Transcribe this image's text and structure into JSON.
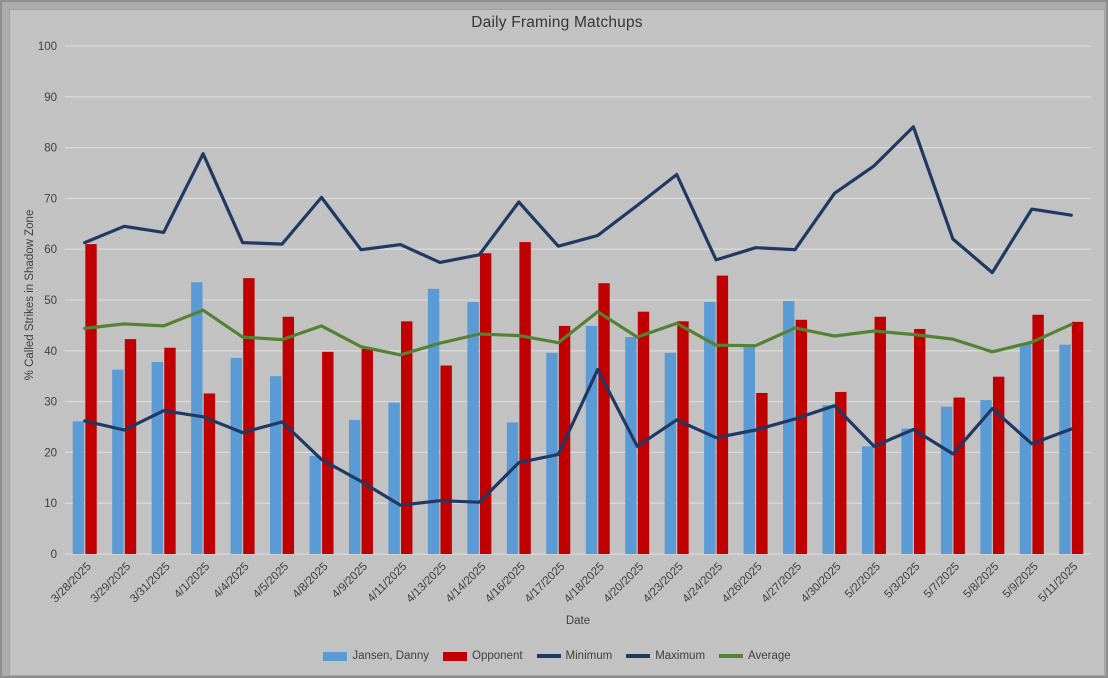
{
  "chart_data": {
    "type": "combo",
    "title": "Daily Framing Matchups",
    "xlabel": "Date",
    "ylabel": "% Called Strikes in Shadow Zone",
    "ylim": [
      0,
      100
    ],
    "yticks": [
      0,
      10,
      20,
      30,
      40,
      50,
      60,
      70,
      80,
      90,
      100
    ],
    "grid": "horizontal",
    "legend_position": "bottom",
    "categories": [
      "3/28/2025",
      "3/29/2025",
      "3/31/2025",
      "4/1/2025",
      "4/4/2025",
      "4/5/2025",
      "4/8/2025",
      "4/9/2025",
      "4/11/2025",
      "4/13/2025",
      "4/14/2025",
      "4/16/2025",
      "4/17/2025",
      "4/18/2025",
      "4/20/2025",
      "4/23/2025",
      "4/24/2025",
      "4/26/2025",
      "4/27/2025",
      "4/30/2025",
      "5/2/2025",
      "5/3/2025",
      "5/7/2025",
      "5/8/2025",
      "5/9/2025",
      "5/11/2025"
    ],
    "series": [
      {
        "name": "Jansen, Danny",
        "type": "bar",
        "color": "#5B9BD5",
        "values": [
          26.1,
          36.3,
          37.8,
          53.5,
          38.6,
          35.0,
          19.3,
          26.4,
          29.8,
          52.2,
          49.6,
          25.9,
          39.6,
          44.9,
          42.7,
          39.6,
          49.6,
          41.3,
          49.8,
          29.3,
          21.2,
          24.7,
          29.0,
          30.3,
          41.4,
          41.2
        ]
      },
      {
        "name": "Opponent",
        "type": "bar",
        "color": "#C00000",
        "values": [
          61.0,
          42.3,
          40.6,
          31.6,
          54.3,
          46.7,
          39.8,
          40.4,
          45.8,
          37.1,
          59.2,
          61.4,
          44.9,
          53.3,
          47.7,
          45.8,
          54.8,
          31.7,
          46.1,
          31.9,
          46.7,
          44.3,
          30.8,
          34.9,
          47.1,
          45.7
        ]
      },
      {
        "name": "Minimum",
        "type": "line",
        "color": "#1F3864",
        "values": [
          26.2,
          24.4,
          28.2,
          27.0,
          23.9,
          26.0,
          18.6,
          14.3,
          9.6,
          10.5,
          10.2,
          18.0,
          19.6,
          36.3,
          21.2,
          26.4,
          22.9,
          24.4,
          26.6,
          29.2,
          21.2,
          24.5,
          19.7,
          28.6,
          21.7,
          24.6
        ]
      },
      {
        "name": "Maximum",
        "type": "line",
        "color": "#1F3864",
        "values": [
          61.3,
          64.5,
          63.3,
          78.8,
          61.3,
          61.0,
          70.2,
          59.9,
          60.9,
          57.4,
          58.9,
          69.3,
          60.6,
          62.7,
          68.6,
          74.7,
          57.9,
          60.3,
          59.9,
          71.0,
          76.4,
          84.1,
          62.0,
          55.4,
          67.9,
          66.7
        ]
      },
      {
        "name": "Average",
        "type": "line",
        "color": "#548235",
        "values": [
          44.4,
          45.3,
          44.9,
          48.0,
          42.7,
          42.2,
          44.9,
          40.8,
          39.2,
          41.5,
          43.3,
          43.0,
          41.6,
          47.7,
          42.7,
          45.4,
          41.1,
          41.0,
          44.5,
          42.9,
          43.9,
          43.2,
          42.3,
          39.8,
          41.7,
          45.2
        ]
      }
    ],
    "colors": {
      "plot_background": "#C2C2C2",
      "outer_background": "#ABABAB",
      "gridline": "#D9D9D9",
      "text": "#3F3F3F"
    }
  }
}
